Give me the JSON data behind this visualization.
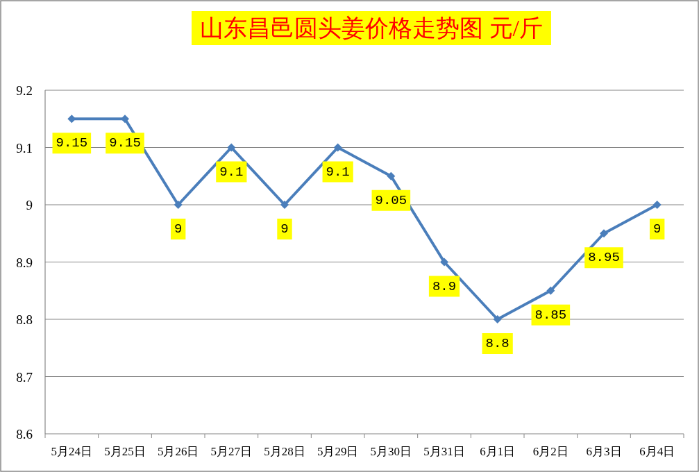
{
  "chart_data": {
    "type": "line",
    "title": "山东昌邑圆头姜价格走势图 元/斤",
    "categories": [
      "5月24日",
      "5月25日",
      "5月26日",
      "5月27日",
      "5月28日",
      "5月29日",
      "5月30日",
      "5月31日",
      "6月1日",
      "6月2日",
      "6月3日",
      "6月4日"
    ],
    "series": [
      {
        "color": "#4a7ebb",
        "values": [
          9.15,
          9.15,
          9,
          9.1,
          9,
          9.1,
          9.05,
          8.9,
          8.8,
          8.85,
          8.95,
          9
        ]
      }
    ],
    "ylim": [
      8.6,
      9.2
    ],
    "yticks": [
      8.6,
      8.7,
      8.8,
      8.9,
      9,
      9.1,
      9.2
    ],
    "grid": "y",
    "marker": "diamond",
    "line_style": "solid",
    "data_labels": true
  }
}
